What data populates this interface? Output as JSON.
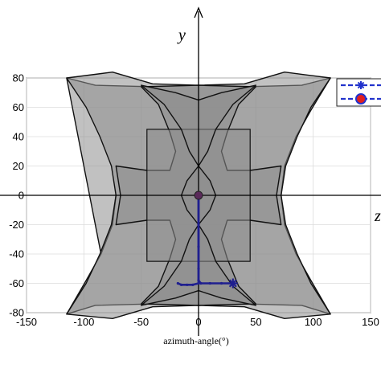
{
  "chart_data": {
    "type": "area",
    "xlabel": "azimuth-angle(°)",
    "ylabel": "",
    "xlim": [
      -150,
      150
    ],
    "ylim": [
      -80,
      80
    ],
    "x_ticks": [
      "-150",
      "-100",
      "-50",
      "0",
      "50",
      "100",
      "150"
    ],
    "y_ticks": [
      "80",
      "60",
      "40",
      "20",
      "0",
      "-20",
      "-40",
      "-60",
      "-80"
    ],
    "axis_y_name": "y",
    "axis_z_name": "z",
    "grid": true,
    "legend_position": "top-right",
    "colors": {
      "region_fill": "#8e8e8e",
      "region_stroke": "#111111",
      "path": "#1f1f8f"
    },
    "regions": [
      {
        "outline": [
          [
            -115,
            80
          ],
          [
            -90,
            75
          ],
          [
            -40,
            74
          ],
          [
            0,
            75
          ],
          [
            40,
            74
          ],
          [
            90,
            75
          ],
          [
            115,
            80
          ],
          [
            98,
            58
          ],
          [
            85,
            40
          ],
          [
            75,
            20
          ],
          [
            72,
            0
          ],
          [
            75,
            -20
          ],
          [
            85,
            -40
          ],
          [
            98,
            -58
          ],
          [
            115,
            -81
          ],
          [
            90,
            -75
          ],
          [
            40,
            -74
          ],
          [
            0,
            -75
          ],
          [
            -40,
            -74
          ],
          [
            -90,
            -75
          ],
          [
            -115,
            -81
          ],
          [
            -98,
            -58
          ],
          [
            -85,
            -40
          ],
          [
            -75,
            -20
          ],
          [
            -72,
            0
          ],
          [
            -75,
            -20
          ],
          [
            -85,
            -40
          ]
        ]
      },
      {
        "outline": [
          [
            -115,
            80
          ],
          [
            -75,
            84
          ],
          [
            -40,
            76
          ],
          [
            0,
            75
          ],
          [
            40,
            76
          ],
          [
            75,
            84
          ],
          [
            115,
            80
          ],
          [
            98,
            60
          ],
          [
            86,
            40
          ],
          [
            76,
            20
          ],
          [
            72,
            0
          ],
          [
            76,
            -20
          ],
          [
            86,
            -40
          ],
          [
            98,
            -60
          ],
          [
            115,
            -81
          ],
          [
            75,
            -84
          ],
          [
            40,
            -76
          ],
          [
            0,
            -75
          ],
          [
            -40,
            -76
          ],
          [
            -75,
            -84
          ],
          [
            -115,
            -81
          ],
          [
            -98,
            -60
          ],
          [
            -86,
            -40
          ],
          [
            -76,
            -20
          ],
          [
            -72,
            0
          ],
          [
            -76,
            20
          ],
          [
            -86,
            40
          ],
          [
            -98,
            60
          ]
        ]
      },
      {
        "outline": [
          [
            -72,
            20
          ],
          [
            -45,
            17
          ],
          [
            -25,
            17
          ],
          [
            -20,
            30
          ],
          [
            -25,
            43
          ],
          [
            -35,
            62
          ],
          [
            -50,
            74
          ],
          [
            0,
            75
          ],
          [
            50,
            74
          ],
          [
            35,
            62
          ],
          [
            25,
            43
          ],
          [
            20,
            30
          ],
          [
            25,
            17
          ],
          [
            45,
            17
          ],
          [
            72,
            20
          ],
          [
            68,
            0
          ],
          [
            72,
            -20
          ],
          [
            45,
            -17
          ],
          [
            25,
            -17
          ],
          [
            20,
            -30
          ],
          [
            25,
            -43
          ],
          [
            35,
            -62
          ],
          [
            50,
            -74
          ],
          [
            0,
            -75
          ],
          [
            -50,
            -74
          ],
          [
            -35,
            -62
          ],
          [
            -25,
            -43
          ],
          [
            -20,
            -30
          ],
          [
            -25,
            -17
          ],
          [
            -45,
            -17
          ],
          [
            -72,
            -20
          ],
          [
            -68,
            0
          ]
        ]
      },
      {
        "rect": {
          "x0": -45,
          "x1": 45,
          "y0": -45,
          "y1": 45
        }
      },
      {
        "outline": [
          [
            -50,
            75
          ],
          [
            -20,
            70
          ],
          [
            0,
            65
          ],
          [
            20,
            70
          ],
          [
            50,
            75
          ],
          [
            30,
            62
          ],
          [
            15,
            45
          ],
          [
            8,
            30
          ],
          [
            0,
            20
          ],
          [
            -8,
            30
          ],
          [
            -15,
            45
          ],
          [
            -30,
            62
          ]
        ]
      },
      {
        "outline": [
          [
            -50,
            -75
          ],
          [
            -20,
            -70
          ],
          [
            0,
            -65
          ],
          [
            20,
            -70
          ],
          [
            50,
            -75
          ],
          [
            30,
            -62
          ],
          [
            15,
            -45
          ],
          [
            8,
            -30
          ],
          [
            0,
            -20
          ],
          [
            -8,
            -30
          ],
          [
            -15,
            -45
          ],
          [
            -30,
            -62
          ]
        ]
      },
      {
        "outline": [
          [
            0,
            20
          ],
          [
            10,
            10
          ],
          [
            15,
            0
          ],
          [
            10,
            -10
          ],
          [
            0,
            -20
          ],
          [
            -10,
            -10
          ],
          [
            -15,
            0
          ],
          [
            -10,
            10
          ]
        ]
      }
    ],
    "series": [
      {
        "marker": "star",
        "x": [
          0,
          0,
          0,
          0,
          0,
          2,
          10,
          20,
          30
        ],
        "y": [
          0,
          -20,
          -35,
          -50,
          -58,
          -60,
          -60,
          -60,
          -60
        ]
      },
      {
        "marker": "dot",
        "x": [
          -18,
          -15,
          -10,
          -5,
          0,
          0
        ],
        "y": [
          -60,
          -61,
          -61,
          -61,
          -60,
          0
        ]
      }
    ]
  }
}
